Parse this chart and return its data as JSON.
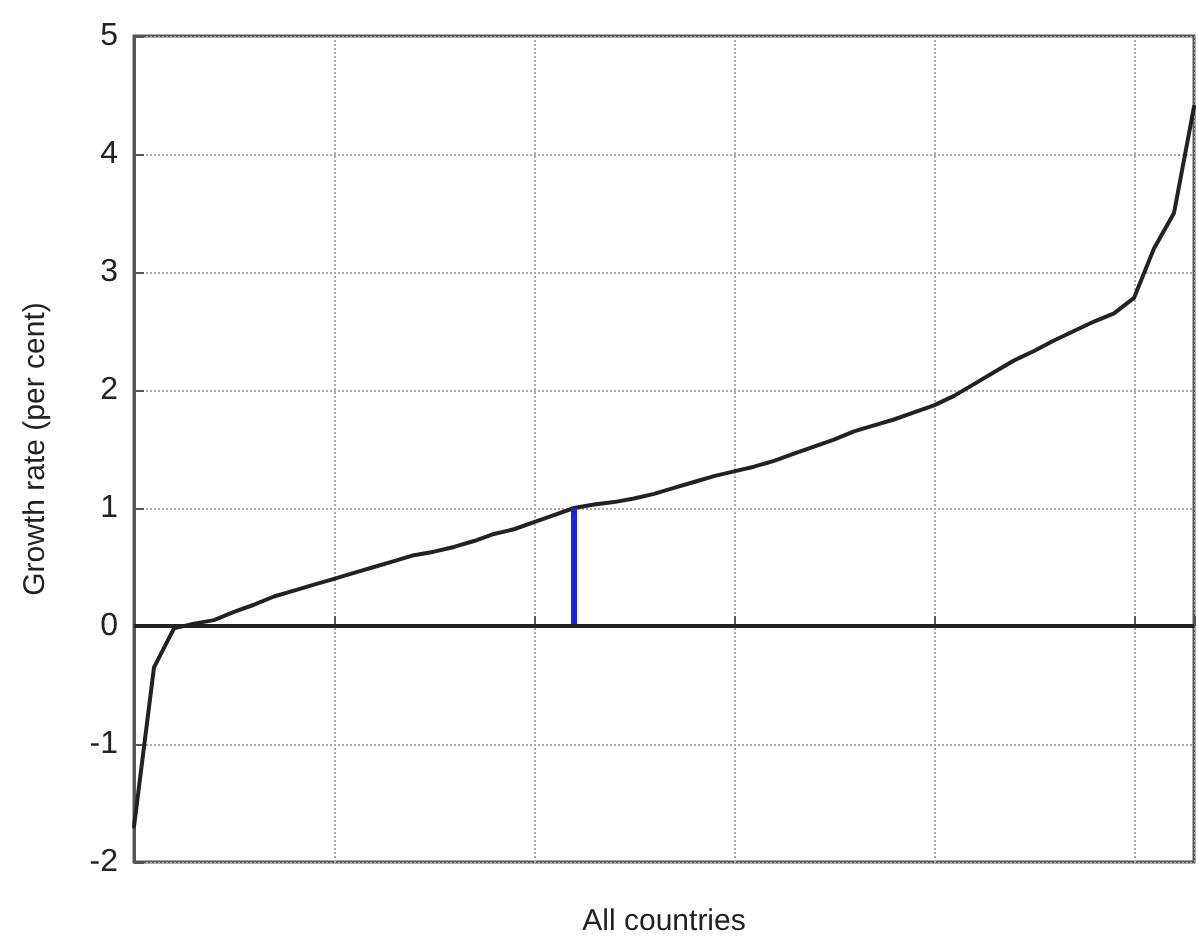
{
  "chart_data": {
    "type": "line",
    "xlabel": "All countries",
    "ylabel": "Growth rate (per cent)",
    "categories": [
      null,
      null,
      null,
      null,
      null,
      null,
      null,
      null,
      null,
      null,
      null,
      null,
      null,
      null,
      null,
      null,
      null,
      null,
      null,
      null,
      null,
      null,
      null,
      null,
      null,
      null,
      null,
      null,
      null,
      null,
      null,
      null,
      null,
      null,
      null,
      null,
      null,
      null,
      null,
      null,
      null,
      null,
      null,
      null,
      null,
      null,
      null,
      null,
      null,
      null,
      null,
      null,
      null,
      null
    ],
    "ylim": [
      -2,
      5
    ],
    "yticks": [
      -2,
      -1,
      0,
      1,
      2,
      3,
      4,
      5
    ],
    "tick_labels": "y",
    "grid": true,
    "marker": "none",
    "line_style": "solid",
    "series": [
      {
        "color": "#222222",
        "values": [
          -1.7,
          -0.35,
          -0.02,
          0.02,
          0.05,
          0.12,
          0.18,
          0.25,
          0.3,
          0.35,
          0.4,
          0.45,
          0.5,
          0.55,
          0.6,
          0.63,
          0.67,
          0.72,
          0.78,
          0.82,
          0.88,
          0.94,
          1.0,
          1.03,
          1.05,
          1.08,
          1.12,
          1.17,
          1.22,
          1.27,
          1.31,
          1.35,
          1.4,
          1.46,
          1.52,
          1.58,
          1.65,
          1.7,
          1.75,
          1.81,
          1.87,
          1.95,
          2.05,
          2.15,
          2.25,
          2.33,
          2.42,
          2.5,
          2.58,
          2.65,
          2.78,
          3.2,
          3.5,
          4.4
        ]
      },
      {
        "type": "bar",
        "color": "#1f1fdc",
        "values": [
          null,
          null,
          null,
          null,
          null,
          null,
          null,
          null,
          null,
          null,
          null,
          null,
          null,
          null,
          null,
          null,
          null,
          null,
          null,
          null,
          null,
          null,
          1.0,
          null,
          null,
          null,
          null,
          null,
          null,
          null,
          null,
          null,
          null,
          null,
          null,
          null,
          null,
          null,
          null,
          null,
          null,
          null,
          null,
          null,
          null,
          null,
          null,
          null,
          null,
          null,
          null,
          null,
          null,
          null
        ]
      }
    ],
    "ref_lines": [
      {
        "axis": "y",
        "value": 0,
        "color": "#222222",
        "line_style": "solid"
      }
    ]
  }
}
